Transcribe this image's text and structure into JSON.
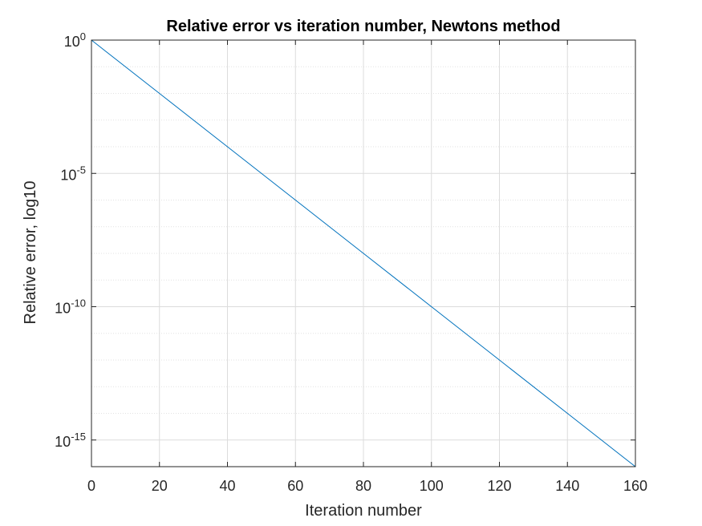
{
  "chart_data": {
    "type": "line",
    "title": "Relative error vs iteration number, Newtons method",
    "xlabel": "Iteration number",
    "ylabel": "Relative error, log10",
    "xlim": [
      0,
      160
    ],
    "ylim": [
      1e-16,
      1
    ],
    "yscale": "log",
    "grid": true,
    "x_ticks": [
      0,
      20,
      40,
      60,
      80,
      100,
      120,
      140,
      160
    ],
    "y_ticks": [
      {
        "base": "10",
        "exp": "0",
        "value": 1
      },
      {
        "base": "10",
        "exp": "-5",
        "value": 1e-05
      },
      {
        "base": "10",
        "exp": "-10",
        "value": 1e-10
      },
      {
        "base": "10",
        "exp": "-15",
        "value": 1e-15
      }
    ],
    "series": [
      {
        "color": "#0072BD",
        "x": [
          0,
          20,
          40,
          60,
          80,
          100,
          120,
          140,
          160
        ],
        "y": [
          1,
          0.01,
          0.0001,
          1e-06,
          1e-08,
          1e-10,
          1e-12,
          1e-14,
          1e-16
        ]
      }
    ]
  }
}
